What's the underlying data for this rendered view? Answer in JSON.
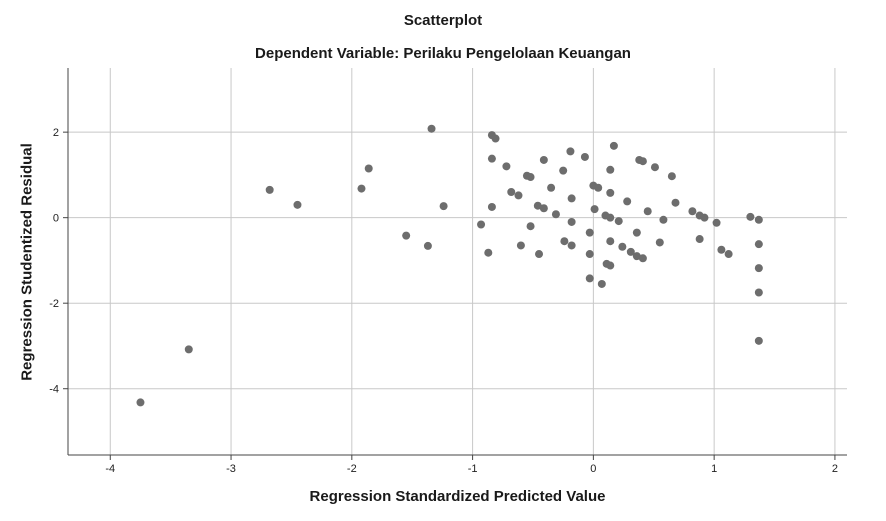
{
  "chart_data": {
    "type": "scatter",
    "title": "Scatterplot",
    "subtitle": "Dependent Variable: Perilaku Pengelolaan Keuangan",
    "xlabel": "Regression Standardized Predicted Value",
    "ylabel": "Regression Studentized Residual",
    "xlim": [
      -4.35,
      2.1
    ],
    "ylim": [
      -5.55,
      3.5
    ],
    "xticks": [
      -4,
      -3,
      -2,
      -1,
      0,
      1,
      2
    ],
    "yticks": [
      -4,
      -2,
      0,
      2
    ],
    "grid": true,
    "point_color": "#6d6d6d",
    "points": [
      [
        -3.75,
        -4.32
      ],
      [
        -3.35,
        -3.08
      ],
      [
        -2.68,
        0.65
      ],
      [
        -2.45,
        0.3
      ],
      [
        -1.92,
        0.68
      ],
      [
        -1.86,
        1.15
      ],
      [
        -1.55,
        -0.42
      ],
      [
        -1.37,
        -0.66
      ],
      [
        -1.34,
        2.08
      ],
      [
        -1.24,
        0.27
      ],
      [
        -0.93,
        -0.16
      ],
      [
        -0.87,
        -0.82
      ],
      [
        -0.84,
        1.93
      ],
      [
        -0.84,
        1.38
      ],
      [
        -0.84,
        0.25
      ],
      [
        -0.81,
        1.85
      ],
      [
        -0.72,
        1.2
      ],
      [
        -0.68,
        0.6
      ],
      [
        -0.62,
        0.52
      ],
      [
        -0.6,
        -0.65
      ],
      [
        -0.55,
        0.98
      ],
      [
        -0.52,
        0.95
      ],
      [
        -0.52,
        -0.2
      ],
      [
        -0.46,
        0.28
      ],
      [
        -0.45,
        -0.85
      ],
      [
        -0.41,
        1.35
      ],
      [
        -0.41,
        0.22
      ],
      [
        -0.35,
        0.7
      ],
      [
        -0.31,
        0.08
      ],
      [
        -0.25,
        1.1
      ],
      [
        -0.24,
        -0.55
      ],
      [
        -0.19,
        1.55
      ],
      [
        -0.18,
        0.45
      ],
      [
        -0.18,
        -0.1
      ],
      [
        -0.18,
        -0.65
      ],
      [
        -0.07,
        1.42
      ],
      [
        -0.03,
        -0.35
      ],
      [
        -0.03,
        -0.85
      ],
      [
        -0.03,
        -1.42
      ],
      [
        0.0,
        0.75
      ],
      [
        0.01,
        0.2
      ],
      [
        0.04,
        0.7
      ],
      [
        0.07,
        -1.55
      ],
      [
        0.1,
        0.05
      ],
      [
        0.11,
        -1.08
      ],
      [
        0.14,
        1.12
      ],
      [
        0.14,
        0.58
      ],
      [
        0.14,
        0.0
      ],
      [
        0.14,
        -0.55
      ],
      [
        0.14,
        -1.12
      ],
      [
        0.17,
        1.68
      ],
      [
        0.21,
        -0.08
      ],
      [
        0.24,
        -0.68
      ],
      [
        0.28,
        0.38
      ],
      [
        0.31,
        -0.8
      ],
      [
        0.36,
        -0.35
      ],
      [
        0.36,
        -0.9
      ],
      [
        0.38,
        1.35
      ],
      [
        0.41,
        1.32
      ],
      [
        0.41,
        -0.95
      ],
      [
        0.45,
        0.15
      ],
      [
        0.51,
        1.18
      ],
      [
        0.55,
        -0.58
      ],
      [
        0.58,
        -0.05
      ],
      [
        0.65,
        0.97
      ],
      [
        0.68,
        0.35
      ],
      [
        0.82,
        0.15
      ],
      [
        0.88,
        0.05
      ],
      [
        0.88,
        -0.5
      ],
      [
        0.92,
        0.0
      ],
      [
        1.02,
        -0.12
      ],
      [
        1.06,
        -0.75
      ],
      [
        1.12,
        -0.85
      ],
      [
        1.3,
        0.02
      ],
      [
        1.37,
        -0.05
      ],
      [
        1.37,
        -0.62
      ],
      [
        1.37,
        -1.18
      ],
      [
        1.37,
        -1.75
      ],
      [
        1.37,
        -2.88
      ]
    ]
  }
}
